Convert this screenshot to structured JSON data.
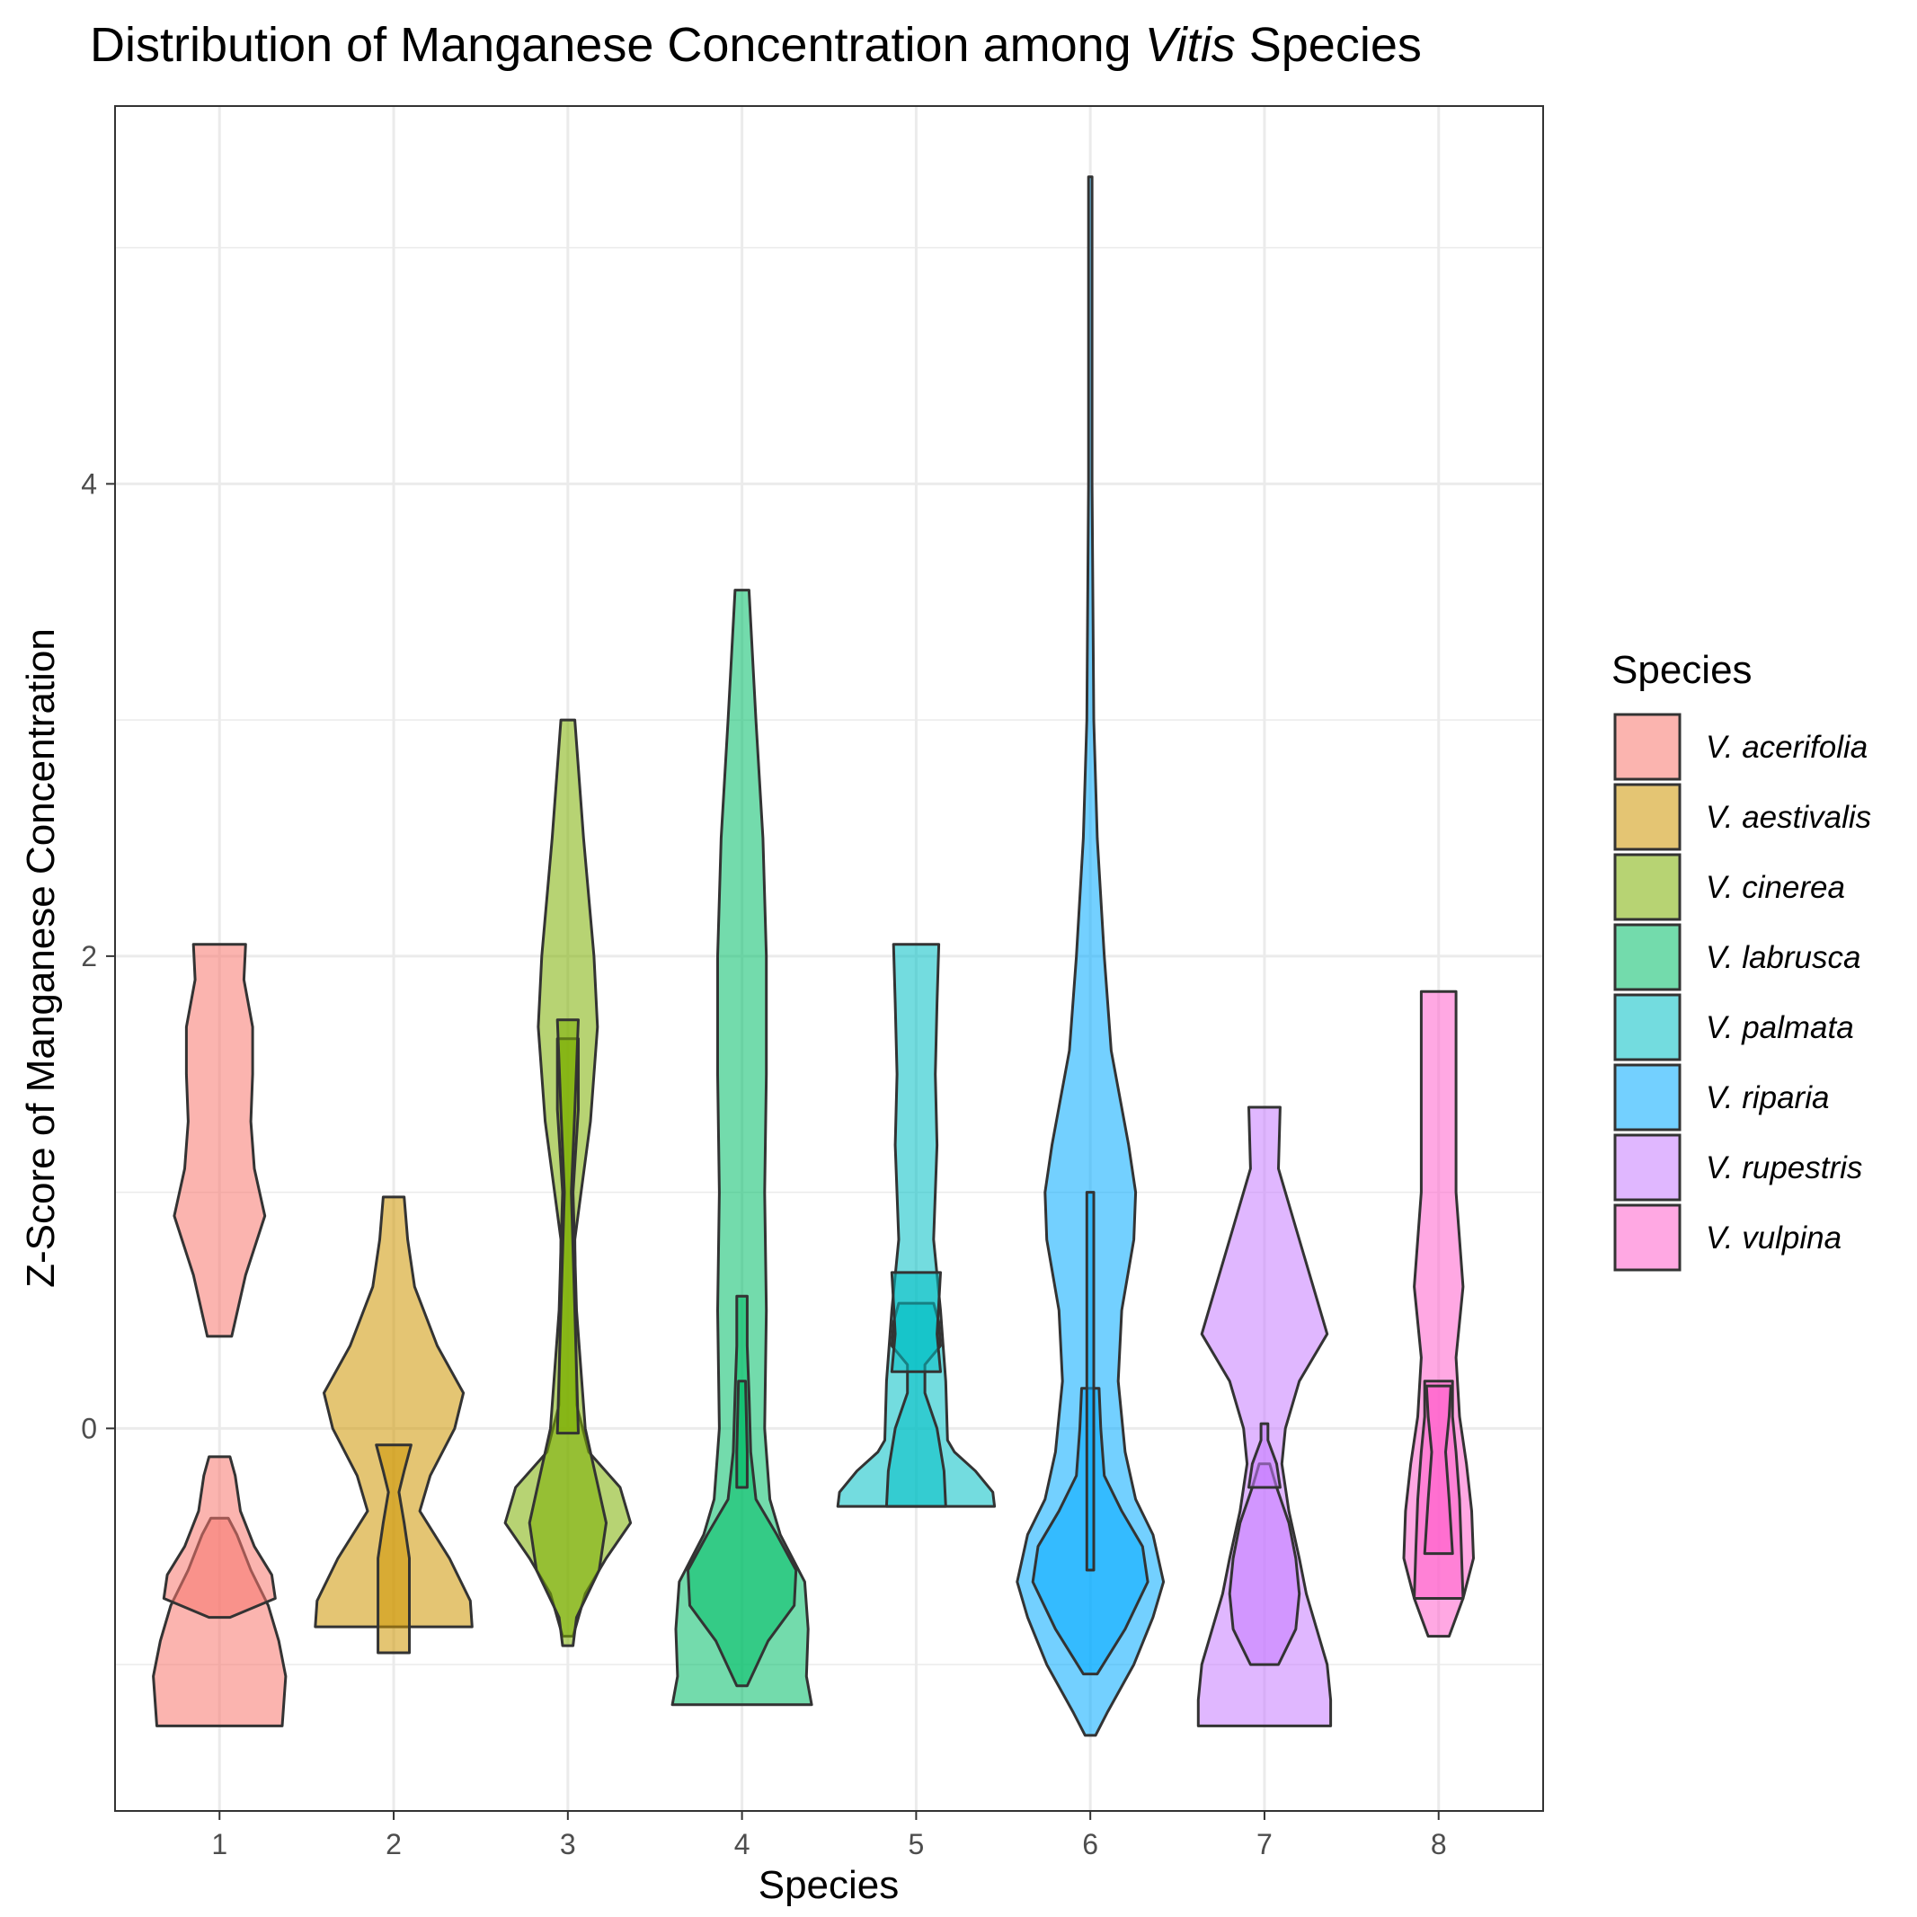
{
  "chart_data": {
    "type": "violin",
    "title_parts": [
      {
        "text": "Distribution of Manganese Concentration among ",
        "italic": false
      },
      {
        "text": "Vitis",
        "italic": true
      },
      {
        "text": " Species",
        "italic": false
      }
    ],
    "xlabel": "Species",
    "ylabel": "Z-Score of Manganese Concentration",
    "x_ticks": [
      "1",
      "2",
      "3",
      "4",
      "5",
      "6",
      "7",
      "8"
    ],
    "y_ticks": [
      0,
      2,
      4
    ],
    "ylim": [
      -1.62,
      5.6
    ],
    "xlim": [
      0.4,
      8.6
    ],
    "grid": true,
    "legend": {
      "title": "Species",
      "position": "right",
      "entries": [
        {
          "label": "V. acerifolia",
          "color": "#F8766D"
        },
        {
          "label": "V. aestivalis",
          "color": "#CD9600"
        },
        {
          "label": "V. cinerea",
          "color": "#7CAE00"
        },
        {
          "label": "V. labrusca",
          "color": "#00BE67"
        },
        {
          "label": "V. palmata",
          "color": "#00BFC4"
        },
        {
          "label": "V. riparia",
          "color": "#00A9FF"
        },
        {
          "label": "V. rupestris",
          "color": "#C77CFF"
        },
        {
          "label": "V. vulpina",
          "color": "#FF61CC"
        }
      ]
    },
    "violins": [
      {
        "x": 1,
        "color": "#F8766D",
        "profile": [
          [
            0.39,
            0.07
          ],
          [
            0.65,
            0.15
          ],
          [
            0.9,
            0.26
          ],
          [
            1.1,
            0.2
          ],
          [
            1.3,
            0.18
          ],
          [
            1.5,
            0.19
          ],
          [
            1.7,
            0.19
          ],
          [
            1.9,
            0.14
          ],
          [
            2.05,
            0.15
          ]
        ]
      },
      {
        "x": 1,
        "color": "#F8766D",
        "profile": [
          [
            -1.26,
            0.36
          ],
          [
            -1.05,
            0.38
          ],
          [
            -0.9,
            0.34
          ],
          [
            -0.75,
            0.28
          ],
          [
            -0.6,
            0.18
          ],
          [
            -0.45,
            0.1
          ],
          [
            -0.38,
            0.05
          ]
        ]
      },
      {
        "x": 1,
        "color": "#F8766D",
        "profile": [
          [
            -0.8,
            0.06
          ],
          [
            -0.72,
            0.32
          ],
          [
            -0.62,
            0.3
          ],
          [
            -0.5,
            0.2
          ],
          [
            -0.35,
            0.12
          ],
          [
            -0.2,
            0.09
          ],
          [
            -0.12,
            0.06
          ]
        ]
      },
      {
        "x": 2,
        "color": "#CD9600",
        "profile": [
          [
            -0.84,
            0.45
          ],
          [
            -0.73,
            0.44
          ],
          [
            -0.55,
            0.32
          ],
          [
            -0.35,
            0.15
          ],
          [
            -0.2,
            0.21
          ],
          [
            0,
            0.35
          ],
          [
            0.15,
            0.4
          ],
          [
            0.35,
            0.25
          ],
          [
            0.6,
            0.12
          ],
          [
            0.8,
            0.08
          ],
          [
            0.98,
            0.06
          ]
        ]
      },
      {
        "x": 2,
        "color": "#CD9600",
        "profile": [
          [
            -0.95,
            0.09
          ],
          [
            -0.73,
            0.09
          ],
          [
            -0.55,
            0.09
          ],
          [
            -0.4,
            0.06
          ],
          [
            -0.27,
            0.03
          ],
          [
            -0.18,
            0.06
          ],
          [
            -0.07,
            0.1
          ]
        ]
      },
      {
        "x": 3,
        "color": "#7CAE00",
        "profile": [
          [
            -0.88,
            0.03
          ],
          [
            -0.7,
            0.1
          ],
          [
            -0.55,
            0.22
          ],
          [
            -0.4,
            0.36
          ],
          [
            -0.25,
            0.3
          ],
          [
            -0.1,
            0.12
          ],
          [
            0.1,
            0.05
          ],
          [
            0.8,
            0.04
          ],
          [
            1.3,
            0.13
          ],
          [
            1.7,
            0.17
          ],
          [
            2.0,
            0.15
          ],
          [
            2.5,
            0.09
          ],
          [
            3.0,
            0.04
          ]
        ]
      },
      {
        "x": 3,
        "color": "#7CAE00",
        "profile": [
          [
            -0.92,
            0.03
          ],
          [
            -0.8,
            0.05
          ],
          [
            -0.6,
            0.18
          ],
          [
            -0.4,
            0.22
          ],
          [
            -0.2,
            0.16
          ],
          [
            0,
            0.1
          ],
          [
            0.5,
            0.05
          ],
          [
            1.0,
            0.03
          ],
          [
            1.35,
            0.06
          ],
          [
            1.65,
            0.06
          ]
        ]
      },
      {
        "x": 3,
        "color": "#7CAE00",
        "profile": [
          [
            -0.02,
            0.06
          ],
          [
            0.5,
            0.04
          ],
          [
            1.0,
            0.02
          ],
          [
            1.35,
            0.04
          ],
          [
            1.73,
            0.06
          ]
        ]
      },
      {
        "x": 4,
        "color": "#00BE67",
        "profile": [
          [
            -1.17,
            0.4
          ],
          [
            -1.05,
            0.37
          ],
          [
            -0.85,
            0.38
          ],
          [
            -0.65,
            0.36
          ],
          [
            -0.45,
            0.22
          ],
          [
            -0.3,
            0.16
          ],
          [
            -0.1,
            0.14
          ],
          [
            0,
            0.13
          ],
          [
            0.5,
            0.14
          ],
          [
            1.0,
            0.13
          ],
          [
            1.5,
            0.14
          ],
          [
            2.0,
            0.14
          ],
          [
            2.5,
            0.12
          ],
          [
            3.0,
            0.08
          ],
          [
            3.55,
            0.04
          ]
        ]
      },
      {
        "x": 4,
        "color": "#00BE67",
        "profile": [
          [
            -1.09,
            0.03
          ],
          [
            -0.9,
            0.15
          ],
          [
            -0.75,
            0.3
          ],
          [
            -0.6,
            0.31
          ],
          [
            -0.45,
            0.2
          ],
          [
            -0.3,
            0.08
          ],
          [
            -0.1,
            0.05
          ],
          [
            0.15,
            0.04
          ],
          [
            0.35,
            0.03
          ],
          [
            0.56,
            0.03
          ]
        ]
      },
      {
        "x": 4,
        "color": "#00BE67",
        "profile": [
          [
            -0.25,
            0.03
          ],
          [
            -0.1,
            0.03
          ],
          [
            0.2,
            0.02
          ]
        ]
      },
      {
        "x": 5,
        "color": "#00BFC4",
        "profile": [
          [
            -0.33,
            0.45
          ],
          [
            -0.27,
            0.44
          ],
          [
            -0.18,
            0.34
          ],
          [
            -0.1,
            0.22
          ],
          [
            -0.05,
            0.18
          ],
          [
            0.2,
            0.17
          ],
          [
            0.5,
            0.14
          ],
          [
            0.8,
            0.1
          ],
          [
            1.2,
            0.12
          ],
          [
            1.5,
            0.11
          ],
          [
            1.8,
            0.12
          ],
          [
            2.05,
            0.13
          ]
        ]
      },
      {
        "x": 5,
        "color": "#00BFC4",
        "profile": [
          [
            -0.33,
            0.17
          ],
          [
            -0.18,
            0.16
          ],
          [
            0,
            0.12
          ],
          [
            0.15,
            0.05
          ],
          [
            0.27,
            0.05
          ],
          [
            0.35,
            0.14
          ],
          [
            0.45,
            0.13
          ],
          [
            0.53,
            0.1
          ]
        ]
      },
      {
        "x": 5,
        "color": "#00BFC4",
        "profile": [
          [
            0.24,
            0.14
          ],
          [
            0.4,
            0.12
          ],
          [
            0.53,
            0.13
          ],
          [
            0.66,
            0.14
          ]
        ]
      },
      {
        "x": 6,
        "color": "#00A9FF",
        "profile": [
          [
            -1.3,
            0.03
          ],
          [
            -1.2,
            0.1
          ],
          [
            -1.0,
            0.25
          ],
          [
            -0.8,
            0.36
          ],
          [
            -0.65,
            0.42
          ],
          [
            -0.45,
            0.36
          ],
          [
            -0.3,
            0.26
          ],
          [
            -0.1,
            0.2
          ],
          [
            0.2,
            0.16
          ],
          [
            0.5,
            0.18
          ],
          [
            0.8,
            0.25
          ],
          [
            1.0,
            0.26
          ],
          [
            1.2,
            0.22
          ],
          [
            1.6,
            0.12
          ],
          [
            2.0,
            0.08
          ],
          [
            2.5,
            0.04
          ],
          [
            3.0,
            0.02
          ],
          [
            4.0,
            0.01
          ],
          [
            5.3,
            0.01
          ]
        ]
      },
      {
        "x": 6,
        "color": "#00A9FF",
        "profile": [
          [
            -1.04,
            0.04
          ],
          [
            -0.85,
            0.2
          ],
          [
            -0.65,
            0.33
          ],
          [
            -0.5,
            0.3
          ],
          [
            -0.35,
            0.18
          ],
          [
            -0.2,
            0.08
          ],
          [
            0,
            0.06
          ],
          [
            0.17,
            0.05
          ]
        ]
      },
      {
        "x": 6,
        "color": "#00A9FF",
        "profile": [
          [
            -0.6,
            0.02
          ],
          [
            0,
            0.02
          ],
          [
            0.5,
            0.02
          ],
          [
            1.0,
            0.02
          ]
        ]
      },
      {
        "x": 7,
        "color": "#C77CFF",
        "profile": [
          [
            -1.26,
            0.38
          ],
          [
            -1.15,
            0.38
          ],
          [
            -1.0,
            0.36
          ],
          [
            -0.85,
            0.3
          ],
          [
            -0.7,
            0.24
          ],
          [
            -0.55,
            0.2
          ],
          [
            -0.35,
            0.14
          ],
          [
            -0.15,
            0.1
          ],
          [
            0,
            0.12
          ],
          [
            0.2,
            0.2
          ],
          [
            0.4,
            0.36
          ],
          [
            0.6,
            0.28
          ],
          [
            0.85,
            0.18
          ],
          [
            1.1,
            0.08
          ],
          [
            1.36,
            0.09
          ]
        ]
      },
      {
        "x": 7,
        "color": "#C77CFF",
        "profile": [
          [
            -1.0,
            0.08
          ],
          [
            -0.85,
            0.18
          ],
          [
            -0.7,
            0.2
          ],
          [
            -0.55,
            0.18
          ],
          [
            -0.4,
            0.14
          ],
          [
            -0.25,
            0.07
          ],
          [
            -0.15,
            0.03
          ]
        ]
      },
      {
        "x": 7,
        "color": "#C77CFF",
        "profile": [
          [
            -0.25,
            0.09
          ],
          [
            -0.15,
            0.07
          ],
          [
            -0.05,
            0.02
          ],
          [
            0.02,
            0.02
          ]
        ]
      },
      {
        "x": 8,
        "color": "#FF61CC",
        "profile": [
          [
            -0.88,
            0.06
          ],
          [
            -0.72,
            0.14
          ],
          [
            -0.55,
            0.2
          ],
          [
            -0.35,
            0.19
          ],
          [
            -0.15,
            0.16
          ],
          [
            0.05,
            0.12
          ],
          [
            0.3,
            0.1
          ],
          [
            0.6,
            0.14
          ],
          [
            1.0,
            0.1
          ],
          [
            1.4,
            0.1
          ],
          [
            1.85,
            0.1
          ]
        ]
      },
      {
        "x": 8,
        "color": "#FF61CC",
        "profile": [
          [
            -0.72,
            0.14
          ],
          [
            -0.5,
            0.13
          ],
          [
            -0.3,
            0.12
          ],
          [
            -0.1,
            0.1
          ],
          [
            0.05,
            0.08
          ],
          [
            0.2,
            0.08
          ]
        ]
      },
      {
        "x": 8,
        "color": "#FF61CC",
        "profile": [
          [
            -0.53,
            0.08
          ],
          [
            -0.3,
            0.06
          ],
          [
            -0.1,
            0.04
          ],
          [
            0.05,
            0.06
          ],
          [
            0.18,
            0.07
          ]
        ]
      }
    ]
  }
}
